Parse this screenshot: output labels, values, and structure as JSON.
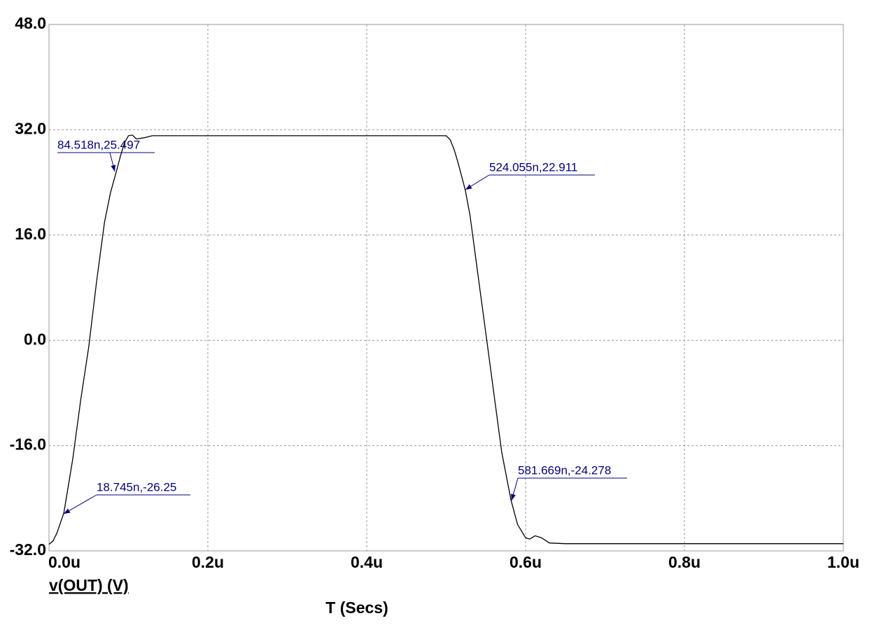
{
  "chart_data": {
    "type": "line",
    "x_label": "T (Secs)",
    "xlim": [
      0,
      1
    ],
    "ylim": [
      -32,
      48
    ],
    "xticks": [
      {
        "value": 0,
        "label": "0.0u"
      },
      {
        "value": 0.2,
        "label": "0.2u"
      },
      {
        "value": 0.4,
        "label": "0.4u"
      },
      {
        "value": 0.6,
        "label": "0.6u"
      },
      {
        "value": 0.8,
        "label": "0.8u"
      },
      {
        "value": 1,
        "label": "1.0u"
      }
    ],
    "yticks": [
      {
        "value": -32,
        "label": "-32.0"
      },
      {
        "value": -16,
        "label": "-16.0"
      },
      {
        "value": 0,
        "label": "0.0"
      },
      {
        "value": 16,
        "label": "16.0"
      },
      {
        "value": 32,
        "label": "32.0"
      },
      {
        "value": 48,
        "label": "48.0"
      }
    ],
    "grid": true,
    "x": [
      0,
      0.005,
      0.01,
      0.0187,
      0.03,
      0.04,
      0.05,
      0.06,
      0.07,
      0.0775,
      0.0845,
      0.09,
      0.095,
      0.1,
      0.105,
      0.11,
      0.12,
      0.13,
      0.2,
      0.4,
      0.5,
      0.505,
      0.51,
      0.515,
      0.524,
      0.53,
      0.54,
      0.55,
      0.56,
      0.57,
      0.5817,
      0.59,
      0.6,
      0.605,
      0.612,
      0.62,
      0.63,
      0.65,
      1.0
    ],
    "series": [
      {
        "name": "v(OUT) (V)",
        "color": "#000000",
        "values": [
          -31,
          -30.5,
          -29.3,
          -26.25,
          -18,
          -9,
          -1,
          9,
          18,
          22.5,
          25.5,
          28,
          30,
          31.1,
          31.2,
          30.6,
          30.8,
          31.1,
          31.1,
          31.1,
          31.1,
          30.5,
          29,
          27,
          22.9,
          19,
          10,
          1,
          -8,
          -17,
          -24.3,
          -28,
          -30,
          -30.2,
          -29.7,
          -30,
          -30.8,
          -30.9,
          -30.9
        ]
      }
    ],
    "annotations": [
      "84.518n,25.497",
      "524.055n,22.911",
      "581.669n,-24.278",
      "18.745n,-26.25"
    ],
    "annotation_color": "#000080"
  }
}
